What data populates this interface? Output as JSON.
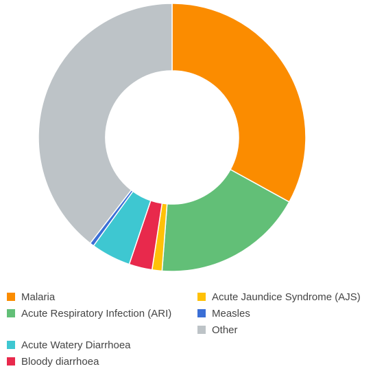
{
  "chart_data": {
    "type": "doughnut",
    "categories": [
      "Malaria",
      "Acute Respiratory Infection (ARI)",
      "Acute Jaundice Syndrome (AJS)",
      "Bloody diarrhoea",
      "Acute Watery Diarrhoea",
      "Measles",
      "Other"
    ],
    "values": [
      33,
      18.2,
      1.2,
      2.8,
      4.8,
      0.5,
      39.5
    ],
    "colors": [
      "#fb8c00",
      "#62bf77",
      "#ffc107",
      "#e8294c",
      "#3ec7d1",
      "#3b6fd6",
      "#bdc3c7"
    ],
    "legend": "bottom"
  }
}
